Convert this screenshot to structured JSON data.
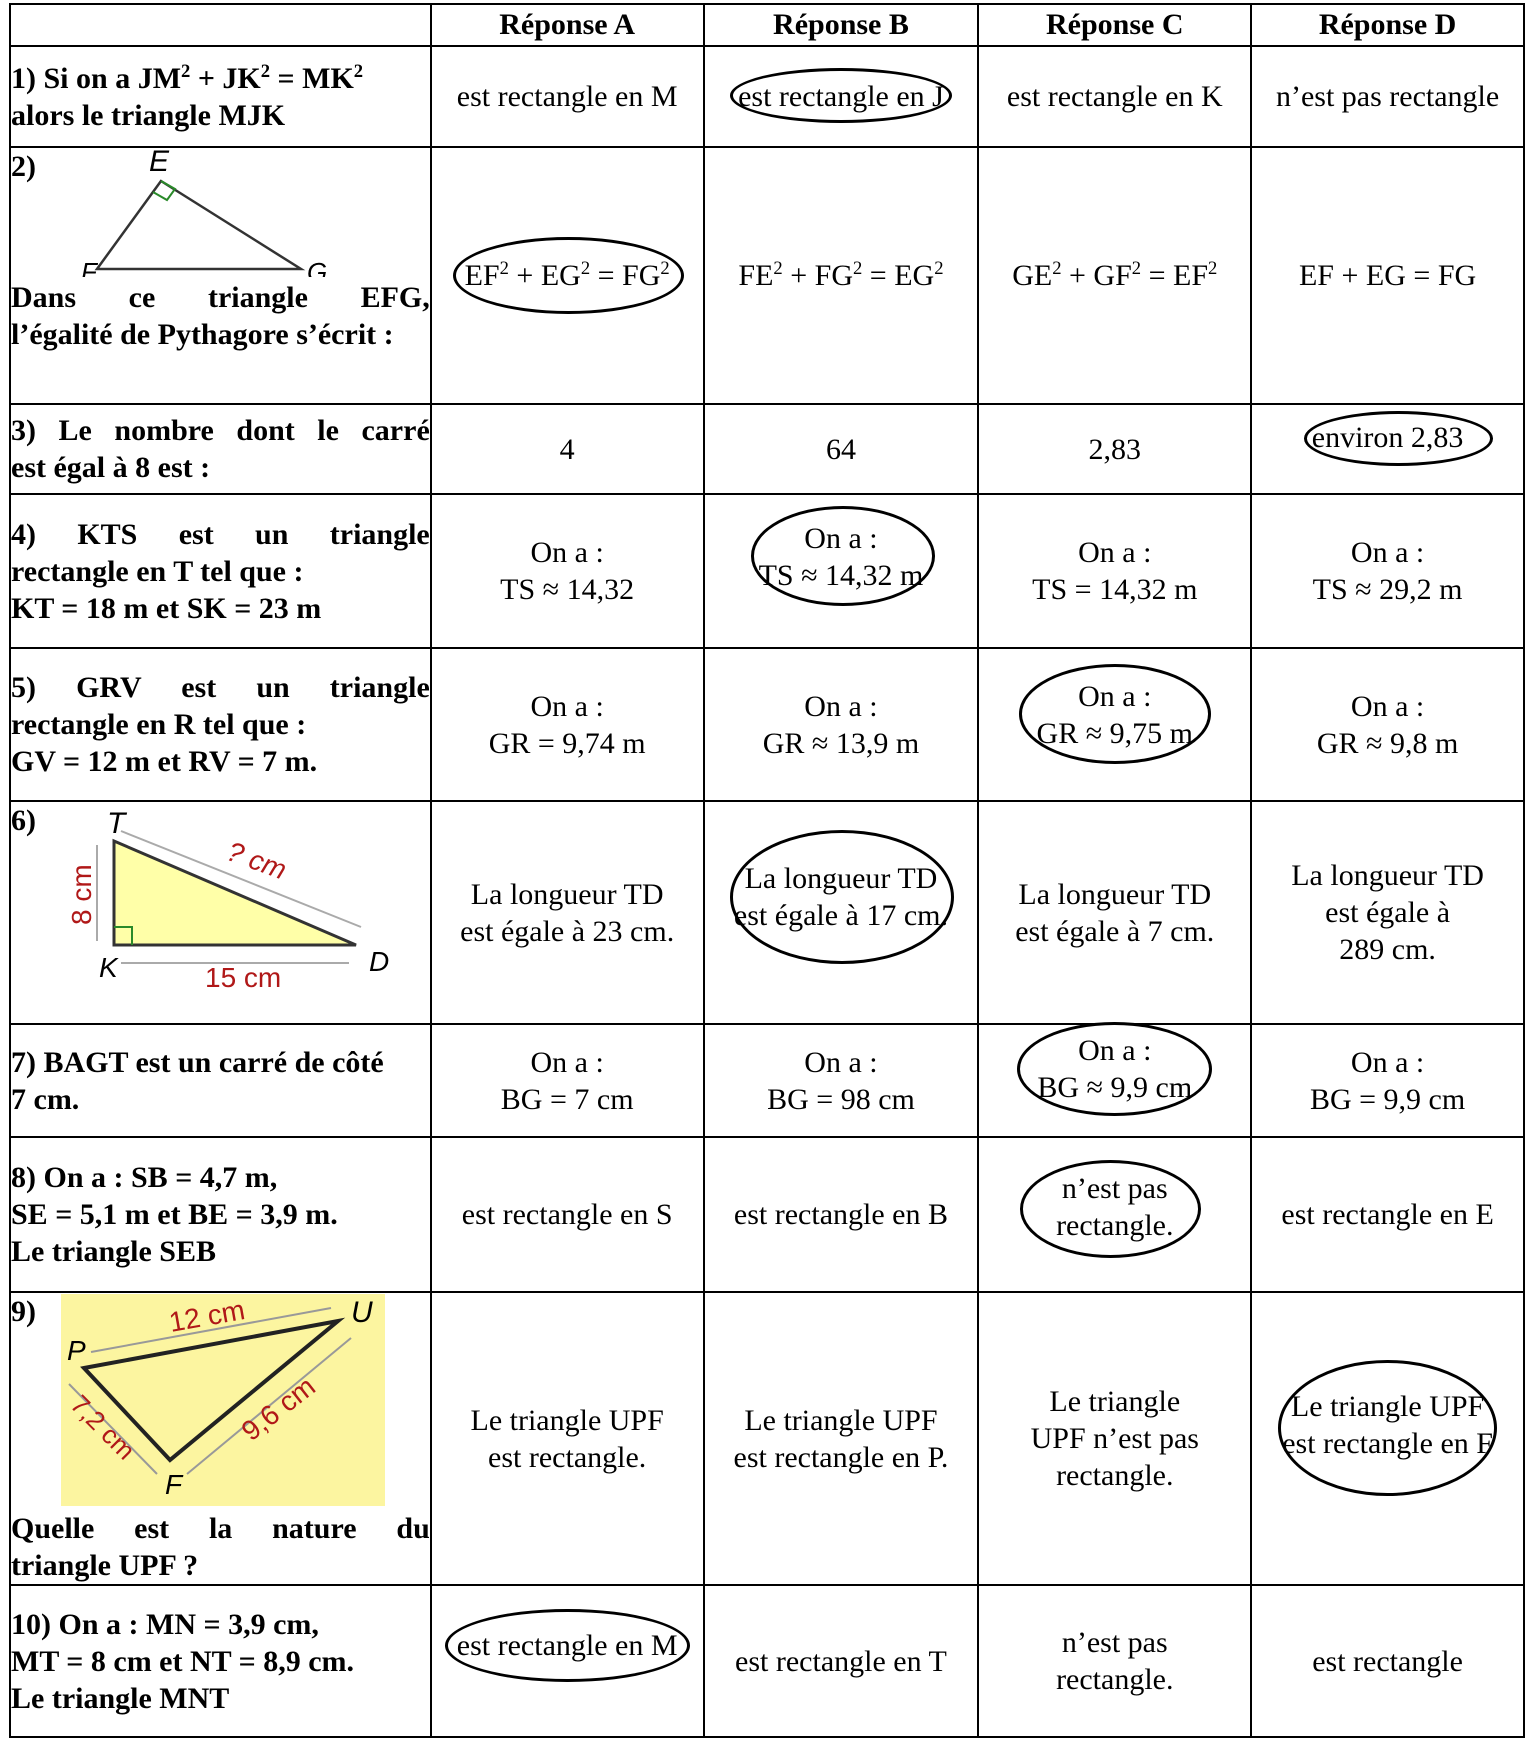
{
  "headers": {
    "empty": "",
    "a": "Réponse A",
    "b": "Réponse B",
    "c": "Réponse C",
    "d": "Réponse D"
  },
  "rows": [
    {
      "q_lines": [
        "1) Si on a JM² + JK² = MK²",
        "alors le triangle MJK"
      ],
      "answers": [
        "est rectangle en M",
        "est rectangle en J",
        "est rectangle en K",
        "n’est pas rectangle"
      ],
      "circled": "B"
    },
    {
      "q_num": "2)",
      "q_lines": [
        "Dans ce triangle EFG,",
        "l’égalité de Pythagore s’écrit :"
      ],
      "figure_labels": {
        "e": "E",
        "f": "F",
        "g": "G"
      },
      "answers": [
        "EF² + EG² = FG²",
        "FE² + FG² = EG²",
        "GE² + GF² = EF²",
        "EF + EG = FG"
      ],
      "circled": "A"
    },
    {
      "q_lines": [
        "3) Le nombre dont le carré",
        "est égal à 8 est :"
      ],
      "answers": [
        "4",
        "64",
        "2,83",
        "environ 2,83"
      ],
      "circled": "D"
    },
    {
      "q_lines": [
        "4) KTS est un triangle",
        "rectangle en T tel que :",
        "KT = 18 m et SK = 23 m"
      ],
      "answers": [
        [
          "On a :",
          "TS ≈ 14,32"
        ],
        [
          "On a :",
          "TS ≈ 14,32 m"
        ],
        [
          "On a :",
          "TS = 14,32 m"
        ],
        [
          "On a :",
          "TS ≈ 29,2 m"
        ]
      ],
      "circled": "B"
    },
    {
      "q_lines": [
        "5) GRV est un triangle",
        "rectangle en R tel que :",
        "GV = 12 m et RV = 7 m."
      ],
      "answers": [
        [
          "On a :",
          "GR = 9,74 m"
        ],
        [
          "On a :",
          "GR ≈ 13,9 m"
        ],
        [
          "On a :",
          "GR ≈ 9,75 m"
        ],
        [
          "On a :",
          "GR ≈ 9,8 m"
        ]
      ],
      "circled": "C"
    },
    {
      "q_num": "6)",
      "figure_labels": {
        "t": "T",
        "k": "K",
        "d": "D",
        "hyp": "? cm",
        "side": "8 cm",
        "base": "15 cm"
      },
      "answers": [
        [
          "La longueur TD",
          "est égale à 23 cm."
        ],
        [
          "La longueur TD",
          "est égale à 17 cm."
        ],
        [
          "La longueur TD",
          "est égale à 7 cm."
        ],
        [
          "La longueur TD",
          "est égale à",
          "289 cm."
        ]
      ],
      "circled": "B"
    },
    {
      "q_lines": [
        "7) BAGT est un carré de côté",
        "7 cm."
      ],
      "answers": [
        [
          "On a :",
          "BG = 7 cm"
        ],
        [
          "On a :",
          "BG = 98 cm"
        ],
        [
          "On a :",
          "BG ≈ 9,9 cm"
        ],
        [
          "On a :",
          "BG = 9,9 cm"
        ]
      ],
      "circled": "C"
    },
    {
      "q_lines": [
        "8) On a : SB = 4,7 m,",
        "SE = 5,1 m et BE = 3,9 m.",
        "Le triangle SEB"
      ],
      "answers": [
        [
          "est rectangle en S"
        ],
        [
          "est rectangle en B"
        ],
        [
          "n’est pas",
          "rectangle."
        ],
        [
          "est rectangle en E"
        ]
      ],
      "circled": "C"
    },
    {
      "q_num": "9)",
      "q_lines": [
        "Quelle est la nature du",
        "triangle UPF ?"
      ],
      "figure_labels": {
        "p": "P",
        "u": "U",
        "f": "F",
        "pu": "12 cm",
        "pf": "7,2 cm",
        "fu": "9,6 cm"
      },
      "answers": [
        [
          "Le triangle UPF",
          "est rectangle."
        ],
        [
          "Le triangle UPF",
          "est rectangle en P."
        ],
        [
          "Le triangle",
          "UPF n’est pas",
          "rectangle."
        ],
        [
          "Le triangle UPF",
          "est rectangle en F"
        ]
      ],
      "circled": "D"
    },
    {
      "q_lines": [
        "10) On a : MN = 3,9 cm,",
        "MT = 8 cm et NT = 8,9 cm.",
        "Le triangle MNT"
      ],
      "answers": [
        [
          "est rectangle en M"
        ],
        [
          "est rectangle en T"
        ],
        [
          "n’est pas",
          "rectangle."
        ],
        [
          "est rectangle"
        ]
      ],
      "circled": "A"
    }
  ]
}
